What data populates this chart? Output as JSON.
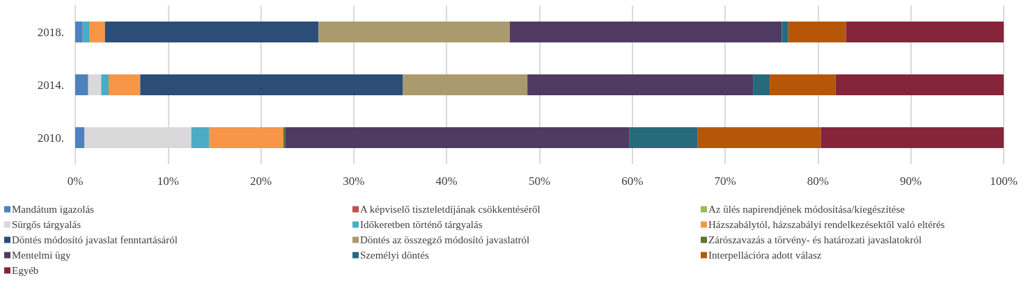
{
  "chart_data": {
    "type": "bar",
    "orientation": "horizontal",
    "stacked": true,
    "categories": [
      "2018.",
      "2014.",
      "2010."
    ],
    "series": [
      {
        "name": "Mandátum igazolás",
        "color": "#4f81bd",
        "values": [
          0.8,
          1.4,
          1.0
        ]
      },
      {
        "name": "A képviselő tiszteletdíjának csökkentéséről",
        "color": "#c0504d",
        "values": [
          null,
          null,
          null
        ]
      },
      {
        "name": "Az ülés napirendjének módosítása/kiegészítése",
        "color": "#9bbb59",
        "values": [
          null,
          null,
          null
        ]
      },
      {
        "name": "Sürgős tárgyalás",
        "color": "#d9d9d9",
        "values": [
          null,
          1.4,
          11.5
        ]
      },
      {
        "name": "Időkeretben történő tárgyalás",
        "color": "#4bacc6",
        "values": [
          0.7,
          0.8,
          1.9
        ]
      },
      {
        "name": "Házszabálytól, házszabályi rendelkezésektől való eltérés",
        "color": "#f79646",
        "values": [
          1.7,
          3.4,
          8.0
        ]
      },
      {
        "name": "Döntés módosító javaslat fenntartásáról",
        "color": "#2c4d75",
        "values": [
          23.0,
          28.3,
          null
        ]
      },
      {
        "name": "Döntés az összegző módosító javaslatról",
        "color": "#ab9a6d",
        "values": [
          20.6,
          13.4,
          null
        ]
      },
      {
        "name": "Zárószavazás a törvény- és határozati javaslatokról",
        "color": "#5f7530",
        "values": [
          null,
          null,
          0.2
        ]
      },
      {
        "name": "Mentelmi ügy",
        "color": "#4f3b62",
        "values": [
          29.3,
          24.3,
          37.1
        ]
      },
      {
        "name": "Személyi döntés",
        "color": "#276a7c",
        "values": [
          0.7,
          1.8,
          7.3
        ]
      },
      {
        "name": "Interpellációra adott válasz",
        "color": "#b65708",
        "values": [
          6.2,
          7.1,
          13.3
        ]
      },
      {
        "name": "Egyéb",
        "color": "#84253a",
        "values": [
          17.0,
          18.1,
          19.7
        ]
      }
    ],
    "xlim": [
      0,
      100
    ],
    "xticks": [
      {
        "value": 0,
        "label": "0%"
      },
      {
        "value": 10,
        "label": "10%"
      },
      {
        "value": 20,
        "label": "20%"
      },
      {
        "value": 30,
        "label": "30%"
      },
      {
        "value": 40,
        "label": "40%"
      },
      {
        "value": 50,
        "label": "50%"
      },
      {
        "value": 60,
        "label": "60%"
      },
      {
        "value": 70,
        "label": "70%"
      },
      {
        "value": 80,
        "label": "80%"
      },
      {
        "value": 90,
        "label": "90%"
      },
      {
        "value": 100,
        "label": "100%"
      }
    ],
    "grid": "x",
    "legend": "bottom"
  }
}
